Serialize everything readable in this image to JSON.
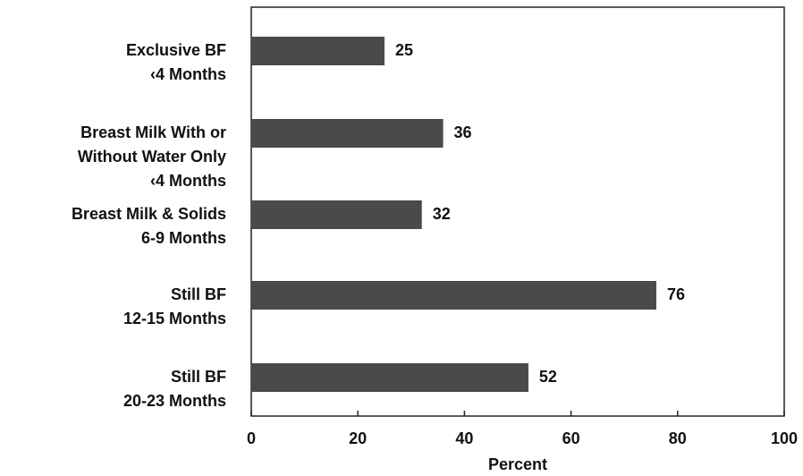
{
  "chart_data": {
    "type": "barh",
    "categories": [
      "Exclusive BF\n‹4 Months",
      "Breast Milk With or\nWithout Water Only\n‹4 Months",
      "Breast Milk & Solids\n6-9 Months",
      "Still BF\n12-15 Months",
      "Still BF\n20-23 Months"
    ],
    "values": [
      25,
      36,
      32,
      76,
      52
    ],
    "color": "#4a4a4a",
    "xlabel": "Percent",
    "xlim": [
      0,
      100
    ],
    "xticks": [
      0,
      20,
      40,
      60,
      80,
      100
    ]
  }
}
